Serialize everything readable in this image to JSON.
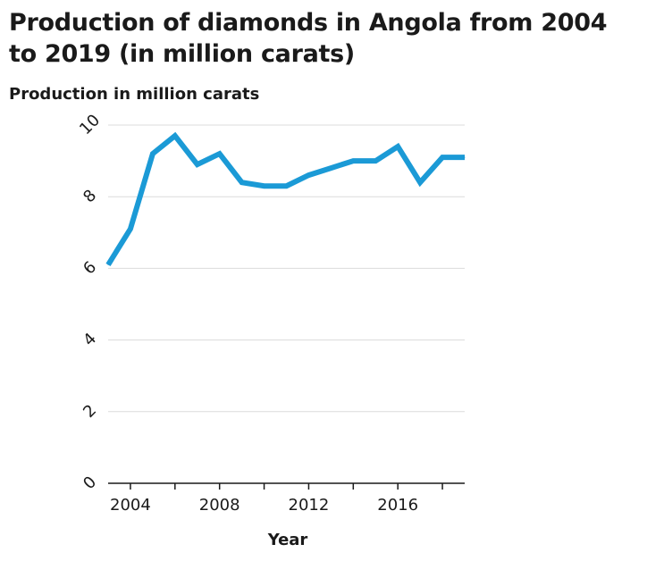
{
  "chart_data": {
    "type": "line",
    "title": "Production of diamonds in Angola from 2004 to 2019 (in million carats)",
    "ylabel": "Production in million carats",
    "xlabel": "Year",
    "xlim": [
      2003,
      2019
    ],
    "ylim": [
      0,
      10
    ],
    "grid": true,
    "color": "#1b9ad6",
    "x_ticks": [
      2004,
      2008,
      2012,
      2016
    ],
    "y_ticks": [
      0,
      2,
      4,
      6,
      8,
      10
    ],
    "series": [
      {
        "x": [
          2003,
          2004,
          2005,
          2006,
          2007,
          2008,
          2009,
          2010,
          2011,
          2012,
          2013,
          2014,
          2015,
          2016,
          2017,
          2018,
          2019
        ],
        "values": [
          6.1,
          7.1,
          9.2,
          9.7,
          8.9,
          9.2,
          8.4,
          8.3,
          8.3,
          8.6,
          8.8,
          9.0,
          9.0,
          9.4,
          8.4,
          9.1,
          9.1
        ]
      }
    ]
  }
}
